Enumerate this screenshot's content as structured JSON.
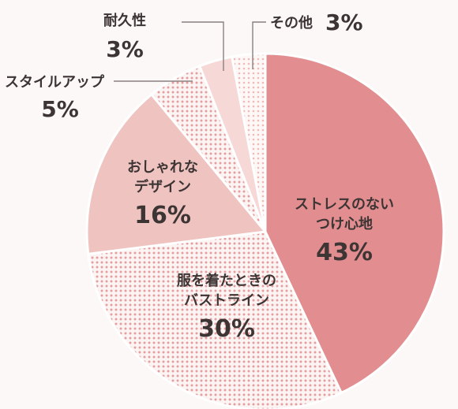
{
  "chart_data": {
    "type": "pie",
    "slices": [
      {
        "label_lines": [
          "ストレスのない",
          "つけ心地"
        ],
        "value": 43,
        "value_label": "43%",
        "color": "#e28d8f",
        "pattern": "solid"
      },
      {
        "label_lines": [
          "服を着たときの",
          "バストライン"
        ],
        "value": 30,
        "value_label": "30%",
        "color": "#e9a4a5",
        "pattern": "dots"
      },
      {
        "label_lines": [
          "おしゃれな",
          "デザイン"
        ],
        "value": 16,
        "value_label": "16%",
        "color": "#efc3c0",
        "pattern": "solid"
      },
      {
        "label_lines": [
          "スタイルアップ"
        ],
        "value": 5,
        "value_label": "5%",
        "color": "#efb7b8",
        "pattern": "dots"
      },
      {
        "label_lines": [
          "耐久性"
        ],
        "value": 3,
        "value_label": "3%",
        "color": "#f6d8d6",
        "pattern": "solid"
      },
      {
        "label_lines": [
          "その他"
        ],
        "value": 3,
        "value_label": "3%",
        "color": "#f0c1c1",
        "pattern": "dots"
      }
    ]
  }
}
